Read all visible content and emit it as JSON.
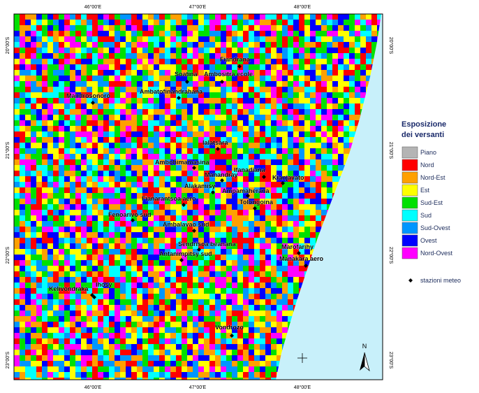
{
  "map": {
    "coordinates": {
      "top": [
        "46°00'E",
        "47°00'E",
        "48°00'E"
      ],
      "bottom": [
        "46°00'E",
        "47°00'E",
        "48°00'E"
      ],
      "left": [
        "20°00'S",
        "21°00'S",
        "22°00'S",
        "23°00'S"
      ],
      "right": [
        "20°00'S",
        "21°00'S",
        "22°00'S",
        "23°00'S"
      ]
    },
    "stations": [
      {
        "label": "Fiandrana"
      },
      {
        "label": "Soatina"
      },
      {
        "label": "Ambositra ecole"
      },
      {
        "label": "Ambatofinandrahana"
      },
      {
        "label": "Mandrosonoro"
      },
      {
        "label": "Ialatsara"
      },
      {
        "label": "Ambohimamasina"
      },
      {
        "label": "Manandray"
      },
      {
        "label": "Ifanadiana"
      },
      {
        "label": "Kianjavato"
      },
      {
        "label": "Alakamisy"
      },
      {
        "label": "Ampamaherana"
      },
      {
        "label": "Fianarantsoa aero"
      },
      {
        "label": "Tolongoina"
      },
      {
        "label": "Fenoarivo sud"
      },
      {
        "label": "Ambalavao sud"
      },
      {
        "label": "Sendrisoa beanana"
      },
      {
        "label": "Antanimpitsy sud"
      },
      {
        "label": "Marofarihy"
      },
      {
        "label": "Manakara aero"
      },
      {
        "label": "Ihosy"
      },
      {
        "label": "Kelivondraka"
      },
      {
        "label": "Vondrozo"
      }
    ],
    "legend": {
      "title": [
        "Esposizione",
        "dei versanti"
      ],
      "items": [
        {
          "label": "Piano",
          "color": "#b4b4b4"
        },
        {
          "label": "Nord",
          "color": "#ff0000"
        },
        {
          "label": "Nord-Est",
          "color": "#ffa000"
        },
        {
          "label": "Est",
          "color": "#ffff00"
        },
        {
          "label": "Sud-Est",
          "color": "#00e000"
        },
        {
          "label": "Sud",
          "color": "#00ffff"
        },
        {
          "label": "Sud-Ovest",
          "color": "#0096ff"
        },
        {
          "label": "Ovest",
          "color": "#0000ff"
        },
        {
          "label": "Nord-Ovest",
          "color": "#ff00ff"
        }
      ],
      "stations_label": "stazioni meteo"
    },
    "north": "N"
  }
}
